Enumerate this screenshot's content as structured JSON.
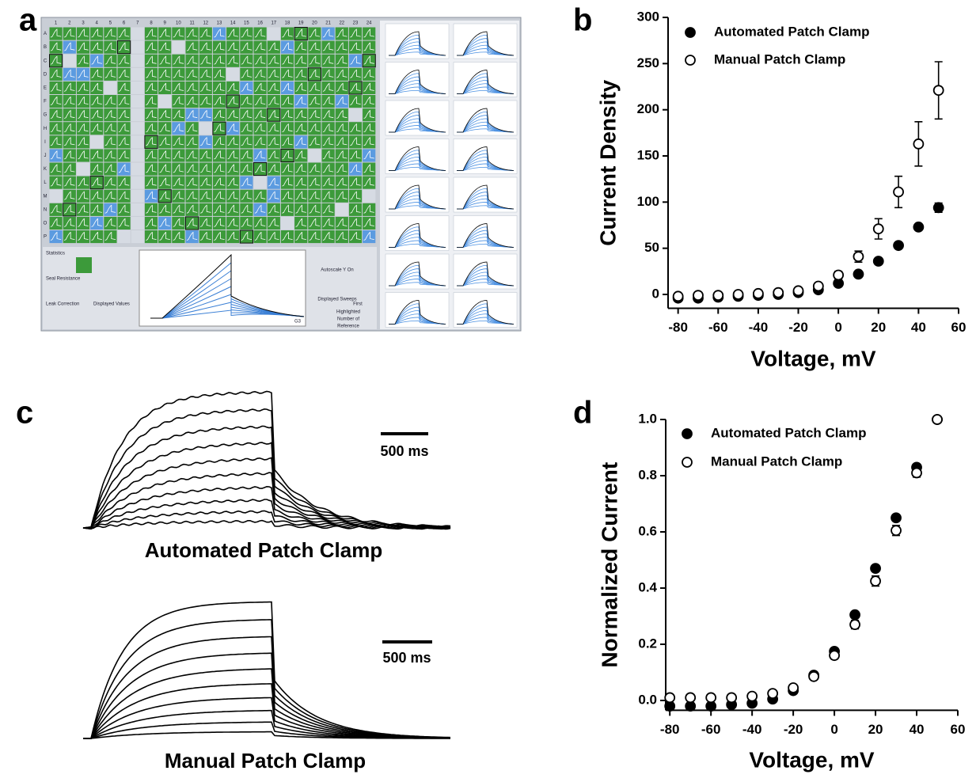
{
  "panel_labels": [
    "a",
    "b",
    "c",
    "d"
  ],
  "panel_a": {
    "columns": [
      "1",
      "2",
      "3",
      "4",
      "5",
      "6",
      "7",
      "8",
      "9",
      "10",
      "11",
      "12",
      "13",
      "14",
      "15",
      "16",
      "17",
      "18",
      "19",
      "20",
      "21",
      "22",
      "23",
      "24"
    ],
    "rows": [
      "A",
      "B",
      "C",
      "D",
      "E",
      "F",
      "G",
      "H",
      "I",
      "J",
      "K",
      "L",
      "M",
      "N",
      "O",
      "P"
    ],
    "controls": [
      "Statistics",
      "Seal Resistance",
      "Leak Correction",
      "Displayed Values",
      "Autoscale Y On",
      "Displayed Sweeps",
      "First",
      "Highlighted",
      "Number of",
      "Reference",
      "G3"
    ]
  },
  "panel_c": {
    "traces": [
      {
        "label": "Automated Patch Clamp",
        "scale_bar": "500 ms"
      },
      {
        "label": "Manual Patch Clamp",
        "scale_bar": "500 ms"
      }
    ]
  },
  "chart_data": [
    {
      "type": "scatter",
      "x_label": "Voltage, mV",
      "y_label": "Current Density",
      "x": [
        -80,
        -70,
        -60,
        -50,
        -40,
        -30,
        -20,
        -10,
        0,
        10,
        20,
        30,
        40,
        50
      ],
      "series": [
        {
          "name": "Automated Patch Clamp",
          "color": "#000000",
          "marker": "filled",
          "values": [
            -4,
            -4,
            -3,
            -2,
            -1,
            0,
            2,
            5,
            12,
            22,
            36,
            53,
            73,
            94
          ],
          "errors": [
            1,
            1,
            1,
            1,
            1,
            1,
            1,
            1,
            2,
            2,
            2,
            2,
            3,
            5
          ]
        },
        {
          "name": "Manual Patch Clamp",
          "color": "#000000",
          "marker": "open",
          "values": [
            -2,
            -1,
            -1,
            0,
            1,
            2,
            4,
            9,
            21,
            41,
            71,
            111,
            163,
            221
          ],
          "errors": [
            1,
            1,
            1,
            1,
            1,
            1,
            2,
            3,
            4,
            6,
            11,
            17,
            24,
            31
          ]
        }
      ],
      "xlim": [
        -85,
        60
      ],
      "xticks": [
        -80,
        -60,
        -40,
        -20,
        0,
        20,
        40,
        60
      ],
      "ylim": [
        -15,
        300
      ],
      "yticks": [
        0,
        50,
        100,
        150,
        200,
        250,
        300
      ],
      "legend": "upper-left"
    },
    {
      "type": "scatter",
      "x_label": "Voltage, mV",
      "y_label": "Normalized Current",
      "x": [
        -80,
        -70,
        -60,
        -50,
        -40,
        -30,
        -20,
        -10,
        0,
        10,
        20,
        30,
        40,
        50
      ],
      "series": [
        {
          "name": "Automated Patch Clamp",
          "color": "#000000",
          "marker": "filled",
          "values": [
            -0.02,
            -0.02,
            -0.02,
            -0.015,
            -0.01,
            0.005,
            0.035,
            0.09,
            0.175,
            0.305,
            0.47,
            0.65,
            0.83,
            1.0
          ],
          "errors": [
            0.005,
            0.005,
            0.005,
            0.005,
            0.005,
            0.005,
            0.008,
            0.01,
            0.01,
            0.01,
            0.01,
            0.01,
            0.01,
            0
          ]
        },
        {
          "name": "Manual Patch Clamp",
          "color": "#000000",
          "marker": "open",
          "values": [
            0.01,
            0.01,
            0.01,
            0.01,
            0.015,
            0.025,
            0.045,
            0.085,
            0.16,
            0.27,
            0.425,
            0.605,
            0.81,
            1.0
          ],
          "errors": [
            0.005,
            0.005,
            0.005,
            0.005,
            0.005,
            0.008,
            0.01,
            0.01,
            0.012,
            0.015,
            0.018,
            0.018,
            0.015,
            0
          ]
        }
      ],
      "xlim": [
        -82,
        60
      ],
      "xticks": [
        -80,
        -60,
        -40,
        -20,
        0,
        20,
        40,
        60
      ],
      "ylim": [
        -0.035,
        1.0
      ],
      "yticks": [
        {
          "value": 0,
          "label": "0.0"
        },
        0.2,
        0.4,
        0.6,
        0.8,
        {
          "value": 1,
          "label": "1.0"
        }
      ],
      "legend": "upper-left"
    }
  ]
}
